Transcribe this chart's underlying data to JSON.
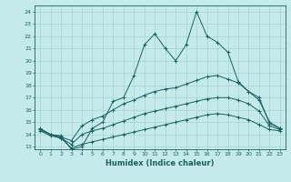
{
  "xlabel": "Humidex (Indice chaleur)",
  "ylabel": "",
  "xlim": [
    -0.5,
    23.5
  ],
  "ylim": [
    12.8,
    24.5
  ],
  "yticks": [
    13,
    14,
    15,
    16,
    17,
    18,
    19,
    20,
    21,
    22,
    23,
    24
  ],
  "xticks": [
    0,
    1,
    2,
    3,
    4,
    5,
    6,
    7,
    8,
    9,
    10,
    11,
    12,
    13,
    14,
    15,
    16,
    17,
    18,
    19,
    20,
    21,
    22,
    23
  ],
  "background_color": "#c5eaea",
  "grid_color": "#a8d4d4",
  "line_color": "#1a6060",
  "line1_x": [
    0,
    1,
    2,
    3,
    4,
    5,
    6,
    7,
    8,
    9,
    10,
    11,
    12,
    13,
    14,
    15,
    16,
    17,
    18,
    19,
    20,
    21,
    22,
    23
  ],
  "line1_y": [
    14.5,
    14.0,
    13.9,
    12.8,
    13.0,
    14.5,
    15.0,
    16.7,
    17.0,
    18.8,
    21.3,
    22.2,
    21.0,
    20.0,
    21.3,
    24.0,
    22.0,
    21.5,
    20.7,
    18.3,
    17.5,
    16.8,
    15.0,
    14.5
  ],
  "line2_x": [
    0,
    1,
    2,
    3,
    4,
    5,
    6,
    7,
    8,
    9,
    10,
    11,
    12,
    13,
    14,
    15,
    16,
    17,
    18,
    19,
    20,
    21,
    22,
    23
  ],
  "line2_y": [
    14.4,
    14.0,
    13.8,
    13.5,
    14.7,
    15.2,
    15.5,
    16.0,
    16.5,
    16.8,
    17.2,
    17.5,
    17.7,
    17.8,
    18.1,
    18.4,
    18.7,
    18.8,
    18.5,
    18.2,
    17.5,
    17.0,
    14.9,
    14.5
  ],
  "line3_x": [
    0,
    1,
    2,
    3,
    4,
    5,
    6,
    7,
    8,
    9,
    10,
    11,
    12,
    13,
    14,
    15,
    16,
    17,
    18,
    19,
    20,
    21,
    22,
    23
  ],
  "line3_y": [
    14.4,
    14.0,
    13.7,
    13.2,
    14.0,
    14.3,
    14.5,
    14.8,
    15.1,
    15.4,
    15.7,
    15.9,
    16.1,
    16.3,
    16.5,
    16.7,
    16.9,
    17.0,
    17.0,
    16.8,
    16.5,
    15.9,
    14.7,
    14.4
  ],
  "line4_x": [
    0,
    1,
    2,
    3,
    4,
    5,
    6,
    7,
    8,
    9,
    10,
    11,
    12,
    13,
    14,
    15,
    16,
    17,
    18,
    19,
    20,
    21,
    22,
    23
  ],
  "line4_y": [
    14.3,
    13.9,
    13.7,
    12.9,
    13.2,
    13.4,
    13.6,
    13.8,
    14.0,
    14.2,
    14.4,
    14.6,
    14.8,
    15.0,
    15.2,
    15.4,
    15.6,
    15.7,
    15.6,
    15.4,
    15.2,
    14.8,
    14.4,
    14.3
  ]
}
